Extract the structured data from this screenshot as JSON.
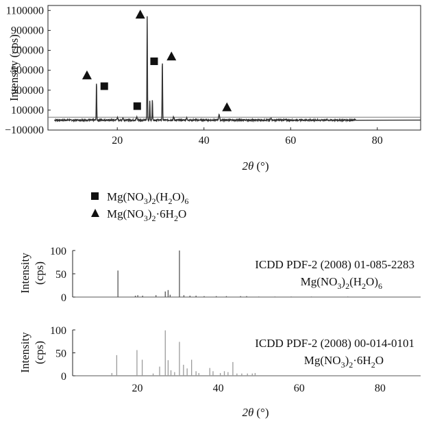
{
  "chart_data": [
    {
      "type": "line",
      "panel": "measured",
      "ylabel": "Intensity (cps)",
      "xlabel_symbol": "2θ",
      "xlabel_unit": "(°)",
      "xlim": [
        4,
        90
      ],
      "ylim": [
        -100000,
        1150000
      ],
      "xticks": [
        "20",
        "40",
        "60",
        "80"
      ],
      "yticks": [
        "1100000",
        "900000",
        "700000",
        "500000",
        "300000",
        "100000",
        "−100000"
      ],
      "baseline": 0,
      "peaks": [
        {
          "x": 15.2,
          "y": 380000
        },
        {
          "x": 20.0,
          "y": 25000
        },
        {
          "x": 21.3,
          "y": 20000
        },
        {
          "x": 24.5,
          "y": 30000
        },
        {
          "x": 26.9,
          "y": 1040000
        },
        {
          "x": 27.5,
          "y": 200000
        },
        {
          "x": 28.1,
          "y": 210000
        },
        {
          "x": 30.4,
          "y": 610000
        },
        {
          "x": 33.0,
          "y": 30000
        },
        {
          "x": 36.0,
          "y": 20000
        },
        {
          "x": 43.5,
          "y": 60000
        },
        {
          "x": 55.5,
          "y": 20000
        }
      ],
      "markers": [
        {
          "shape": "triangle",
          "x": 13.0,
          "y": 450000
        },
        {
          "shape": "square",
          "x": 17.0,
          "y": 340000
        },
        {
          "shape": "triangle",
          "x": 25.3,
          "y": 1060000
        },
        {
          "shape": "square",
          "x": 24.6,
          "y": 140000
        },
        {
          "shape": "square",
          "x": 28.5,
          "y": 590000
        },
        {
          "shape": "triangle",
          "x": 32.5,
          "y": 640000
        },
        {
          "shape": "triangle",
          "x": 45.3,
          "y": 130000
        }
      ]
    },
    {
      "type": "bar",
      "panel": "reference-1",
      "ylabel_lines": [
        "Intensity",
        "(cps)"
      ],
      "xlim": [
        4,
        90
      ],
      "ylim": [
        0,
        100
      ],
      "yticks": [
        "100",
        "50",
        "0"
      ],
      "label_line1": "ICDD PDF-2 (2008) 01-085-2283",
      "formula": "Mg(NO3)2(H2O)6",
      "color": "#555555",
      "x": [
        15.2,
        19.5,
        20.1,
        21.3,
        24.6,
        26.9,
        27.6,
        28.1,
        30.4,
        31.5,
        33.0,
        34.5,
        36.5,
        39.5,
        42.0,
        45.5,
        47.0,
        50.0,
        54.0,
        58.0,
        63.0,
        72.0
      ],
      "values": [
        57,
        3,
        4,
        3,
        4,
        12,
        15,
        5,
        100,
        4,
        3,
        3,
        2,
        2,
        2,
        2,
        2,
        1,
        1,
        1,
        1,
        1
      ]
    },
    {
      "type": "bar",
      "panel": "reference-2",
      "ylabel_lines": [
        "Intensity",
        "(cps)"
      ],
      "xlabel_symbol": "2θ",
      "xlabel_unit": "(°)",
      "xlim": [
        4,
        90
      ],
      "ylim": [
        0,
        100
      ],
      "xticks": [
        "20",
        "40",
        "60",
        "80"
      ],
      "yticks": [
        "100",
        "50",
        "0"
      ],
      "label_line1": "ICDD PDF-2 (2008) 00-014-0101",
      "formula": "Mg(NO3)2·6H2O",
      "color": "#9a9a9a",
      "x": [
        13.7,
        14.9,
        19.9,
        21.2,
        23.9,
        25.5,
        26.9,
        27.6,
        28.3,
        29.2,
        30.4,
        31.4,
        32.3,
        33.4,
        34.5,
        35.2,
        37.9,
        38.7,
        40.5,
        41.5,
        42.4,
        43.6,
        44.6,
        45.8,
        47.2,
        48.4,
        49.1
      ],
      "values": [
        6,
        45,
        56,
        35,
        5,
        20,
        99,
        34,
        12,
        8,
        74,
        24,
        16,
        35,
        10,
        6,
        17,
        10,
        6,
        10,
        8,
        30,
        5,
        5,
        5,
        5,
        6
      ]
    }
  ],
  "legend": [
    {
      "marker": "square-icon",
      "formula": "Mg(NO3)2(H2O)6"
    },
    {
      "marker": "triangle-icon",
      "formula": "Mg(NO3)2·6H2O"
    }
  ]
}
